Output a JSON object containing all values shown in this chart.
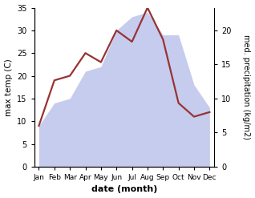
{
  "months": [
    "Jan",
    "Feb",
    "Mar",
    "Apr",
    "May",
    "Jun",
    "Jul",
    "Aug",
    "Sep",
    "Oct",
    "Nov",
    "Dec"
  ],
  "month_positions": [
    0,
    1,
    2,
    3,
    4,
    5,
    6,
    7,
    8,
    9,
    10,
    11
  ],
  "precipitation": [
    9.0,
    14.0,
    15.0,
    21.0,
    22.0,
    30.0,
    33.0,
    34.0,
    29.0,
    29.0,
    18.0,
    13.0
  ],
  "temperature": [
    9.0,
    19.0,
    20.0,
    25.0,
    23.0,
    30.0,
    27.5,
    35.0,
    28.0,
    14.0,
    11.0,
    12.0
  ],
  "temp_color": "#993333",
  "precip_fill_color": "#c5ccee",
  "precip_border_color": "#aab4d4",
  "precip_alpha": 1.0,
  "left_ylim": [
    0,
    35
  ],
  "left_yticks": [
    0,
    5,
    10,
    15,
    20,
    25,
    30,
    35
  ],
  "right_ylim": [
    0,
    23.33
  ],
  "right_yticks": [
    0,
    5,
    10,
    15,
    20
  ],
  "xlabel": "date (month)",
  "ylabel_left": "max temp (C)",
  "ylabel_right": "med. precipitation (kg/m2)",
  "background_color": "#ffffff",
  "linewidth": 1.6
}
